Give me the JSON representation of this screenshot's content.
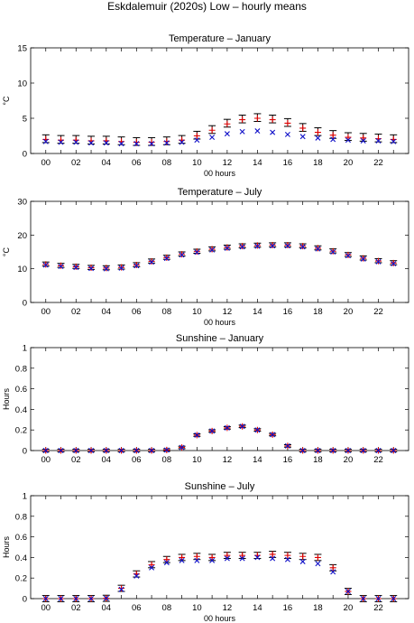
{
  "figure": {
    "title": "Eskdalemuir (2020s) Low – hourly means",
    "colors": {
      "black_series": "#000000",
      "red_series": "#e00000",
      "blue_series": "#1010c8"
    }
  },
  "chart_data": [
    {
      "type": "scatter",
      "title": "Temperature – January",
      "xlabel": "00 hours",
      "ylabel": "°C",
      "xlim": [
        -1,
        24
      ],
      "ylim": [
        0,
        15
      ],
      "xticks": [
        "00",
        "02",
        "04",
        "06",
        "08",
        "10",
        "12",
        "14",
        "16",
        "18",
        "20",
        "22"
      ],
      "yticks": [
        "0",
        "5",
        "10",
        "15"
      ],
      "x": [
        0,
        1,
        2,
        3,
        4,
        5,
        6,
        7,
        8,
        9,
        10,
        11,
        12,
        13,
        14,
        15,
        16,
        17,
        18,
        19,
        20,
        21,
        22,
        23
      ],
      "error_half_width": 0.55,
      "series": [
        {
          "marker": "errorbar",
          "color": "#000000",
          "values": [
            2.1,
            2.0,
            2.0,
            1.9,
            1.9,
            1.8,
            1.7,
            1.7,
            1.8,
            2.0,
            2.6,
            3.4,
            4.3,
            4.9,
            5.1,
            4.9,
            4.4,
            3.7,
            3.1,
            2.7,
            2.4,
            2.3,
            2.2,
            2.1
          ]
        },
        {
          "marker": "plus",
          "color": "#e00000",
          "values": [
            2.0,
            1.9,
            1.9,
            1.8,
            1.8,
            1.7,
            1.6,
            1.6,
            1.7,
            1.9,
            2.5,
            3.3,
            4.2,
            4.8,
            5.0,
            4.8,
            4.3,
            3.6,
            3.0,
            2.6,
            2.3,
            2.2,
            2.1,
            2.0
          ]
        },
        {
          "marker": "cross",
          "color": "#1010c8",
          "values": [
            1.7,
            1.6,
            1.6,
            1.5,
            1.5,
            1.4,
            1.4,
            1.4,
            1.5,
            1.6,
            1.9,
            2.3,
            2.8,
            3.1,
            3.2,
            3.0,
            2.7,
            2.4,
            2.2,
            2.0,
            1.9,
            1.8,
            1.8,
            1.7
          ]
        }
      ]
    },
    {
      "type": "scatter",
      "title": "Temperature – July",
      "xlabel": "00 hours",
      "ylabel": "°C",
      "xlim": [
        -1,
        24
      ],
      "ylim": [
        0,
        30
      ],
      "xticks": [
        "00",
        "02",
        "04",
        "06",
        "08",
        "10",
        "12",
        "14",
        "16",
        "18",
        "20",
        "22"
      ],
      "yticks": [
        "0",
        "10",
        "20",
        "30"
      ],
      "x": [
        0,
        1,
        2,
        3,
        4,
        5,
        6,
        7,
        8,
        9,
        10,
        11,
        12,
        13,
        14,
        15,
        16,
        17,
        18,
        19,
        20,
        21,
        22,
        23
      ],
      "error_half_width": 0.6,
      "series": [
        {
          "marker": "errorbar",
          "color": "#000000",
          "values": [
            11.4,
            11.0,
            10.7,
            10.4,
            10.3,
            10.5,
            11.2,
            12.3,
            13.4,
            14.4,
            15.2,
            15.9,
            16.4,
            16.8,
            17.0,
            17.1,
            17.1,
            16.8,
            16.2,
            15.3,
            14.2,
            13.2,
            12.4,
            11.8
          ]
        },
        {
          "marker": "plus",
          "color": "#e00000",
          "values": [
            11.3,
            10.9,
            10.6,
            10.3,
            10.2,
            10.4,
            11.1,
            12.2,
            13.3,
            14.3,
            15.1,
            15.8,
            16.3,
            16.7,
            16.9,
            17.0,
            17.0,
            16.7,
            16.1,
            15.2,
            14.1,
            13.1,
            12.3,
            11.7
          ]
        },
        {
          "marker": "cross",
          "color": "#1010c8",
          "values": [
            11.1,
            10.7,
            10.4,
            10.1,
            10.0,
            10.2,
            10.9,
            12.0,
            13.1,
            14.1,
            14.9,
            15.6,
            16.1,
            16.5,
            16.7,
            16.8,
            16.8,
            16.5,
            15.9,
            15.0,
            13.9,
            12.9,
            12.1,
            11.5
          ]
        }
      ]
    },
    {
      "type": "scatter",
      "title": "Sunshine – January",
      "xlabel": "",
      "ylabel": "Hours",
      "xlim": [
        -1,
        24
      ],
      "ylim": [
        0,
        1
      ],
      "xticks": [
        "00",
        "02",
        "04",
        "06",
        "08",
        "10",
        "12",
        "14",
        "16",
        "18",
        "20",
        "22"
      ],
      "yticks": [
        "0",
        "0.2",
        "0.4",
        "0.6",
        "0.8",
        "1"
      ],
      "x": [
        0,
        1,
        2,
        3,
        4,
        5,
        6,
        7,
        8,
        9,
        10,
        11,
        12,
        13,
        14,
        15,
        16,
        17,
        18,
        19,
        20,
        21,
        22,
        23
      ],
      "error_half_width": 0.012,
      "series": [
        {
          "marker": "errorbar",
          "color": "#000000",
          "values": [
            0,
            0,
            0,
            0,
            0,
            0,
            0,
            0,
            0.005,
            0.03,
            0.15,
            0.19,
            0.22,
            0.235,
            0.2,
            0.155,
            0.045,
            0,
            0,
            0,
            0,
            0,
            0,
            0
          ]
        },
        {
          "marker": "plus",
          "color": "#e00000",
          "values": [
            0,
            0,
            0,
            0,
            0,
            0,
            0,
            0,
            0.005,
            0.03,
            0.15,
            0.19,
            0.22,
            0.235,
            0.2,
            0.155,
            0.045,
            0,
            0,
            0,
            0,
            0,
            0,
            0
          ]
        },
        {
          "marker": "cross",
          "color": "#1010c8",
          "values": [
            0,
            0,
            0,
            0,
            0,
            0,
            0,
            0,
            0.005,
            0.03,
            0.15,
            0.19,
            0.22,
            0.235,
            0.2,
            0.155,
            0.045,
            0,
            0,
            0,
            0,
            0,
            0,
            0
          ]
        }
      ]
    },
    {
      "type": "scatter",
      "title": "Sunshine – July",
      "xlabel": "00 hours",
      "ylabel": "Hours",
      "xlim": [
        -1,
        24
      ],
      "ylim": [
        0,
        1
      ],
      "xticks": [
        "00",
        "02",
        "04",
        "06",
        "08",
        "10",
        "12",
        "14",
        "16",
        "18",
        "20",
        "22"
      ],
      "yticks": [
        "0",
        "0.2",
        "0.4",
        "0.6",
        "0.8",
        "1"
      ],
      "x": [
        0,
        1,
        2,
        3,
        4,
        5,
        6,
        7,
        8,
        9,
        10,
        11,
        12,
        13,
        14,
        15,
        16,
        17,
        18,
        19,
        20,
        21,
        22,
        23
      ],
      "error_half_width": 0.03,
      "series": [
        {
          "marker": "errorbar",
          "color": "#000000",
          "values": [
            0,
            0,
            0,
            0,
            0.003,
            0.1,
            0.24,
            0.33,
            0.38,
            0.4,
            0.41,
            0.4,
            0.42,
            0.42,
            0.42,
            0.43,
            0.42,
            0.41,
            0.4,
            0.3,
            0.07,
            0,
            0,
            0
          ]
        },
        {
          "marker": "plus",
          "color": "#e00000",
          "values": [
            0,
            0,
            0,
            0,
            0.003,
            0.1,
            0.24,
            0.33,
            0.38,
            0.4,
            0.41,
            0.4,
            0.42,
            0.42,
            0.42,
            0.43,
            0.42,
            0.41,
            0.4,
            0.3,
            0.07,
            0,
            0,
            0
          ]
        },
        {
          "marker": "cross",
          "color": "#1010c8",
          "values": [
            0,
            0,
            0,
            0,
            0.003,
            0.09,
            0.22,
            0.3,
            0.35,
            0.37,
            0.37,
            0.37,
            0.39,
            0.39,
            0.4,
            0.39,
            0.38,
            0.36,
            0.34,
            0.26,
            0.07,
            0,
            0,
            0
          ]
        }
      ]
    }
  ]
}
